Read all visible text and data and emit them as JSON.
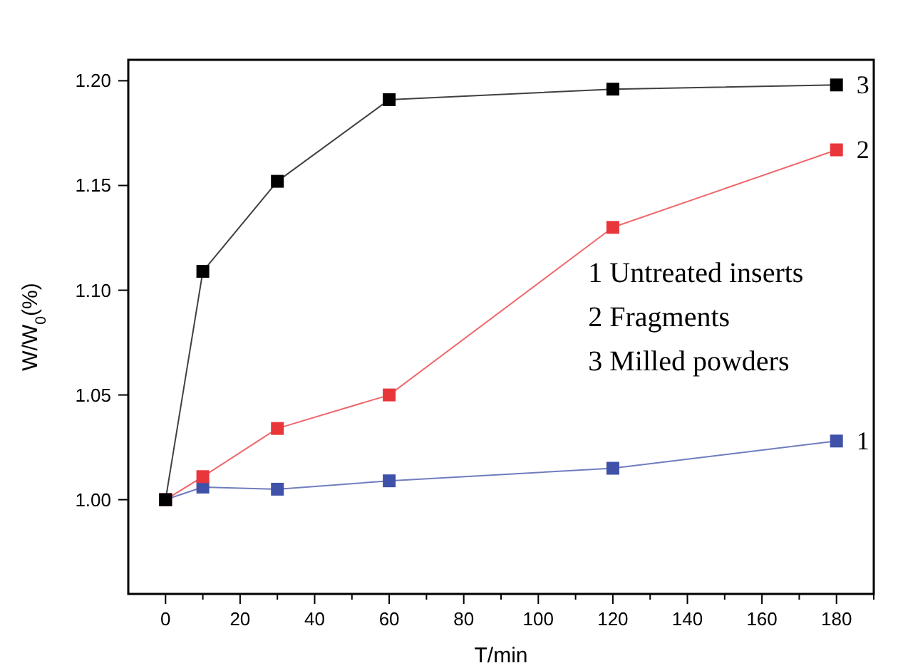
{
  "chart_data": {
    "type": "line",
    "xlabel": "T/min",
    "ylabel": "W/W$_{0}$(%)",
    "x": [
      0,
      10,
      30,
      60,
      120,
      180
    ],
    "series": [
      {
        "name": "1",
        "color": "#3f51a8",
        "values": [
          1.0,
          1.006,
          1.005,
          1.009,
          1.015,
          1.028
        ]
      },
      {
        "name": "2",
        "color": "#e8363b",
        "values": [
          1.0,
          1.011,
          1.034,
          1.05,
          1.13,
          1.167
        ]
      },
      {
        "name": "3",
        "color": "#000000",
        "values": [
          1.0,
          1.109,
          1.152,
          1.191,
          1.196,
          1.198
        ]
      }
    ],
    "xlim": [
      -10,
      190
    ],
    "xticks": [
      0,
      {
        "value": 10,
        "label": null
      },
      20,
      {
        "value": 30,
        "label": null
      },
      40,
      {
        "value": 50,
        "label": null
      },
      60,
      {
        "value": 70,
        "label": null
      },
      80,
      {
        "value": 90,
        "label": null
      },
      100,
      {
        "value": 110,
        "label": null
      },
      120,
      {
        "value": 130,
        "label": null
      },
      140,
      {
        "value": 150,
        "label": null
      },
      160,
      {
        "value": 170,
        "label": null
      },
      180,
      {
        "value": 190,
        "label": null
      }
    ],
    "ylim": [
      0.955,
      1.21
    ],
    "yticks": [
      {
        "value": 1.0,
        "label": "1.00"
      },
      {
        "value": 1.05,
        "label": "1.05"
      },
      {
        "value": 1.1,
        "label": "1.10"
      },
      {
        "value": 1.15,
        "label": "1.15"
      },
      {
        "value": 1.2,
        "label": "1.20"
      }
    ],
    "marker": "square",
    "line_style": "solid",
    "grid": false,
    "annotations": [
      "1 Untreated inserts",
      "2 Fragments",
      "3 Milled powders"
    ]
  }
}
